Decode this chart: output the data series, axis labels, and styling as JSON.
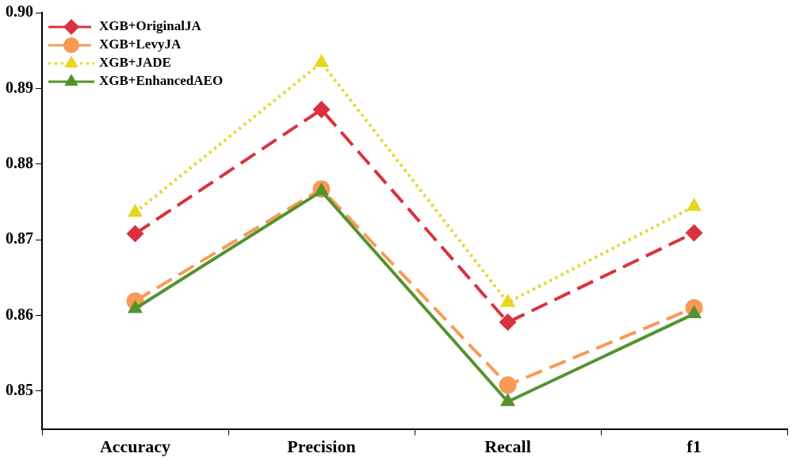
{
  "chart_data": {
    "type": "line",
    "categories": [
      "Accuracy",
      "Precision",
      "Recall",
      "f1"
    ],
    "series": [
      {
        "name": "XGB+OriginalJA",
        "color": "#d9323e",
        "marker": "diamond",
        "line_style": "dashed",
        "values": [
          0.8708,
          0.8872,
          0.8591,
          0.8709
        ]
      },
      {
        "name": "XGB+LevyJA",
        "color": "#f89a55",
        "marker": "circle",
        "line_style": "dashed",
        "values": [
          0.8619,
          0.8767,
          0.8508,
          0.861
        ]
      },
      {
        "name": "XGB+JADE",
        "color": "#e6d61c",
        "marker": "triangle",
        "line_style": "dotted",
        "values": [
          0.8736,
          0.8934,
          0.8617,
          0.8744
        ]
      },
      {
        "name": "XGB+EnhancedAEO",
        "color": "#55922f",
        "marker": "triangle",
        "line_style": "solid",
        "values": [
          0.8609,
          0.8764,
          0.8486,
          0.8602
        ]
      }
    ],
    "ylim": [
      0.845,
      0.9
    ],
    "yticks": [
      0.85,
      0.86,
      0.87,
      0.88,
      0.89,
      {
        "value": 0.9,
        "label": "0.90"
      }
    ],
    "grid": false,
    "legend": "top left"
  }
}
